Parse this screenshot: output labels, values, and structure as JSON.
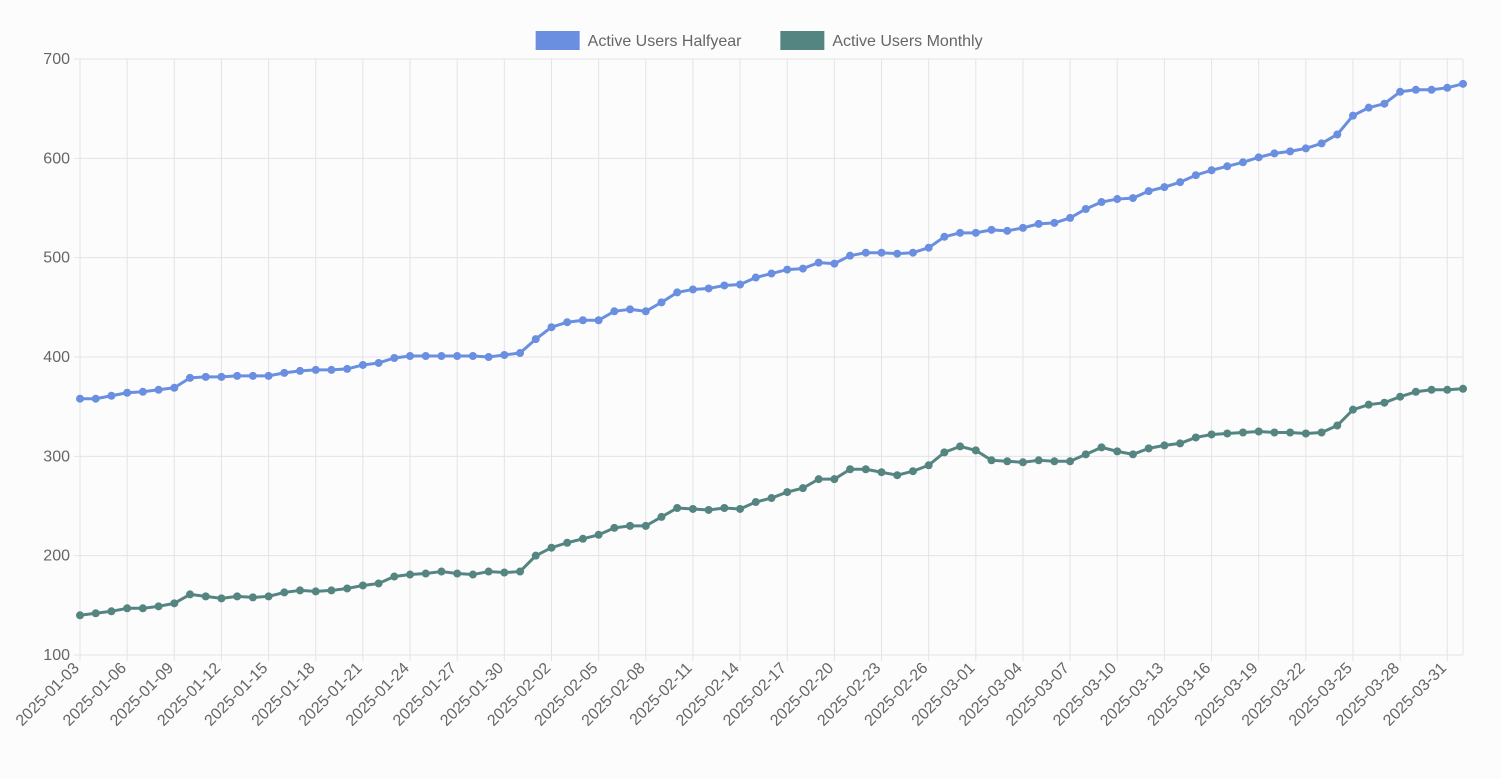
{
  "chart_data": {
    "type": "line",
    "title": "",
    "xlabel": "",
    "ylabel": "",
    "ylim": [
      100,
      700
    ],
    "yticks": [
      100,
      200,
      300,
      400,
      500,
      600,
      700
    ],
    "grid": true,
    "legend_position": "top",
    "x_start": "2025-01-03",
    "x_end": "2025-04-01",
    "x_tick_labels": [
      "2025-01-03",
      "2025-01-06",
      "2025-01-09",
      "2025-01-12",
      "2025-01-15",
      "2025-01-18",
      "2025-01-21",
      "2025-01-24",
      "2025-01-27",
      "2025-01-30",
      "2025-02-02",
      "2025-02-05",
      "2025-02-08",
      "2025-02-11",
      "2025-02-14",
      "2025-02-17",
      "2025-02-20",
      "2025-02-23",
      "2025-02-26",
      "2025-03-01",
      "2025-03-04",
      "2025-03-07",
      "2025-03-10",
      "2025-03-13",
      "2025-03-16",
      "2025-03-19",
      "2025-03-22",
      "2025-03-25",
      "2025-03-28",
      "2025-03-31"
    ],
    "series": [
      {
        "name": "Active Users Halfyear",
        "color": "#6a8fe0",
        "values": [
          358,
          358,
          361,
          364,
          365,
          367,
          369,
          379,
          380,
          380,
          381,
          381,
          381,
          384,
          386,
          387,
          387,
          388,
          392,
          394,
          399,
          401,
          401,
          401,
          401,
          401,
          400,
          402,
          404,
          418,
          430,
          435,
          437,
          437,
          446,
          448,
          446,
          455,
          465,
          468,
          469,
          472,
          473,
          480,
          484,
          488,
          489,
          495,
          494,
          502,
          505,
          505,
          504,
          505,
          510,
          521,
          525,
          525,
          528,
          527,
          530,
          534,
          535,
          540,
          549,
          556,
          559,
          560,
          567,
          571,
          576,
          583,
          588,
          592,
          596,
          601,
          605,
          607,
          610,
          615,
          624,
          643,
          651,
          655,
          667,
          669,
          669,
          671,
          675
        ]
      },
      {
        "name": "Active Users Monthly",
        "color": "#558580",
        "values": [
          140,
          142,
          144,
          147,
          147,
          149,
          152,
          161,
          159,
          157,
          159,
          158,
          159,
          163,
          165,
          164,
          165,
          167,
          170,
          172,
          179,
          181,
          182,
          184,
          182,
          181,
          184,
          183,
          184,
          200,
          208,
          213,
          217,
          221,
          228,
          230,
          230,
          239,
          248,
          247,
          246,
          248,
          247,
          254,
          258,
          264,
          268,
          277,
          277,
          287,
          287,
          284,
          281,
          285,
          291,
          304,
          310,
          306,
          296,
          295,
          294,
          296,
          295,
          295,
          302,
          309,
          305,
          302,
          308,
          311,
          313,
          319,
          322,
          323,
          324,
          325,
          324,
          324,
          323,
          324,
          331,
          347,
          352,
          354,
          360,
          365,
          367,
          367,
          368
        ]
      }
    ]
  }
}
